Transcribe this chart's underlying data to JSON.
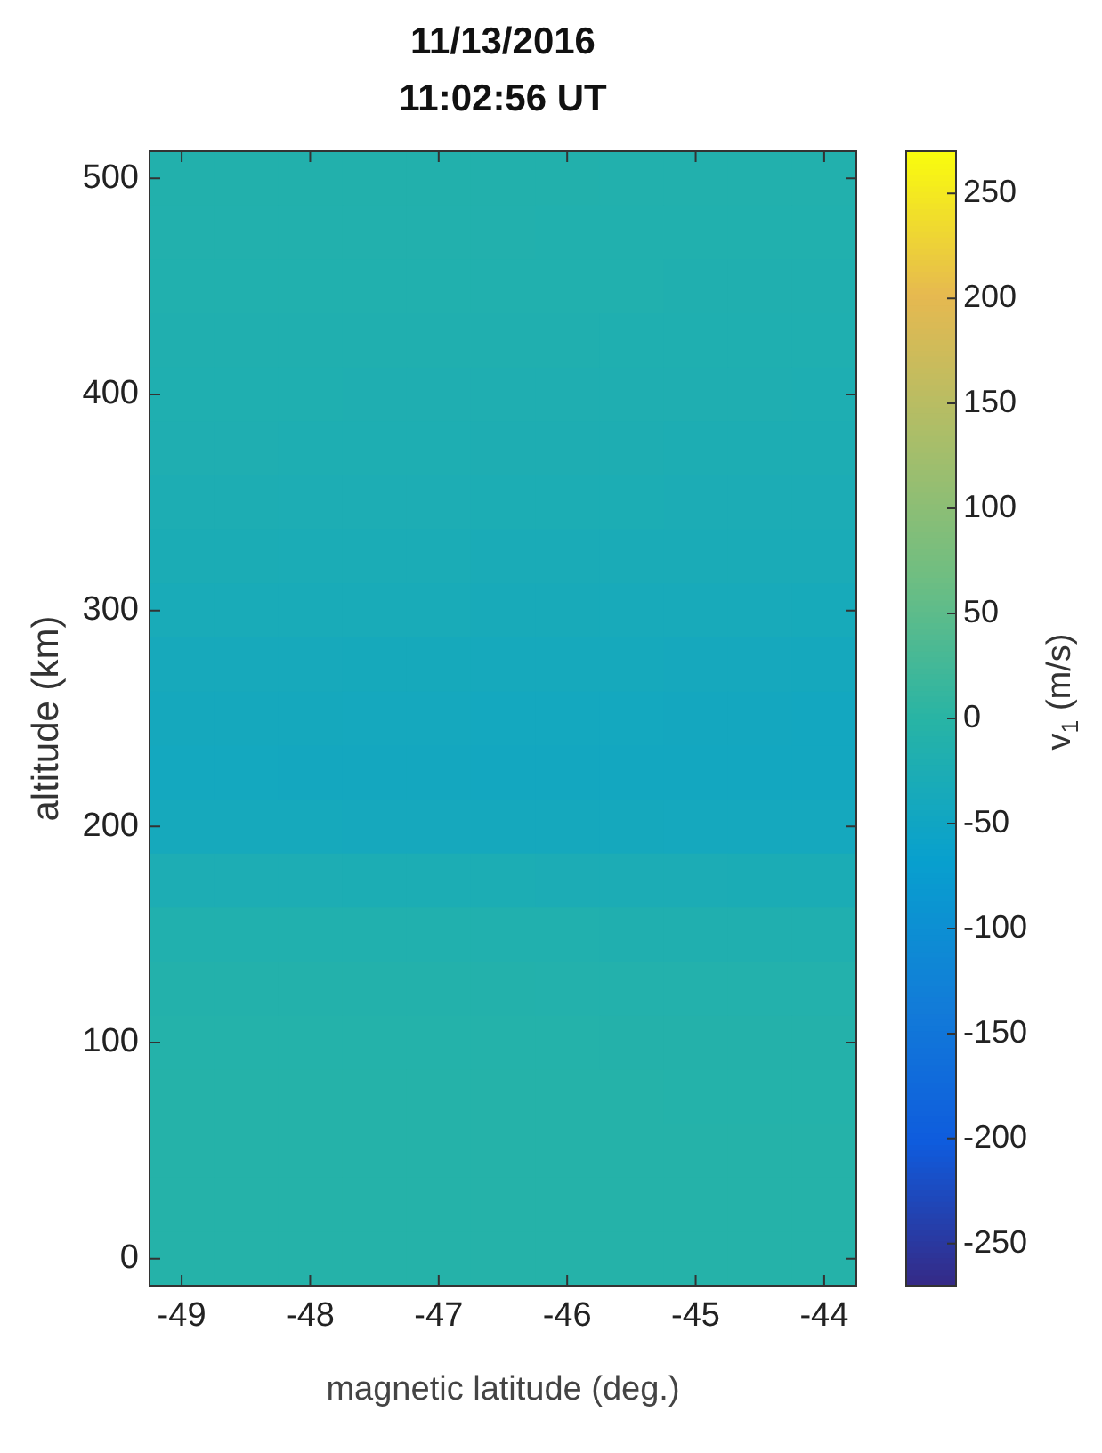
{
  "chart_data": {
    "type": "heatmap",
    "title": "11/13/2016\n11:02:56 UT",
    "xlabel": "magnetic latitude (deg.)",
    "ylabel": "altitude (km)",
    "clabel": "v$_{1}$ (m/s)",
    "categories": [
      "-49",
      null,
      "-48",
      null,
      "-47",
      null,
      "-46",
      null,
      "-45",
      null,
      "-44"
    ],
    "y_categories": [
      "500",
      null,
      null,
      null,
      "400",
      null,
      null,
      null,
      "300",
      null,
      null,
      null,
      "200",
      null,
      null,
      null,
      "100",
      null,
      null,
      null,
      "0"
    ],
    "cells": [
      [
        -12,
        -12,
        -12,
        -12,
        -12,
        -12,
        -12,
        -13,
        -13,
        -13,
        -13
      ],
      [
        -13,
        -13,
        -13,
        -13,
        -13,
        -13,
        -14,
        -14,
        -14,
        -14,
        -14
      ],
      [
        -14,
        -14,
        -14,
        -15,
        -15,
        -15,
        -15,
        -15,
        -16,
        -16,
        -16
      ],
      [
        -16,
        -16,
        -16,
        -17,
        -17,
        -17,
        -17,
        -18,
        -18,
        -18,
        -18
      ],
      [
        -18,
        -18,
        -18,
        -19,
        -19,
        -19,
        -20,
        -20,
        -20,
        -20,
        -21
      ],
      [
        -20,
        -20,
        -21,
        -21,
        -21,
        -22,
        -22,
        -22,
        -23,
        -23,
        -23
      ],
      [
        -23,
        -23,
        -24,
        -24,
        -24,
        -25,
        -25,
        -25,
        -26,
        -26,
        -26
      ],
      [
        -27,
        -27,
        -28,
        -28,
        -28,
        -29,
        -29,
        -29,
        -30,
        -30,
        -30
      ],
      [
        -31,
        -31,
        -32,
        -32,
        -32,
        -33,
        -33,
        -34,
        -34,
        -34,
        -35
      ],
      [
        -36,
        -36,
        -36,
        -37,
        -37,
        -38,
        -38,
        -38,
        -39,
        -39,
        -40
      ],
      [
        -40,
        -40,
        -40,
        -41,
        -41,
        -42,
        -42,
        -42,
        -43,
        -43,
        -44
      ],
      [
        -42,
        -42,
        -43,
        -43,
        -43,
        -44,
        -44,
        -44,
        -45,
        -45,
        -45
      ],
      [
        -38,
        -38,
        -38,
        -39,
        -39,
        -40,
        -40,
        -40,
        -41,
        -41,
        -41
      ],
      [
        -24,
        -24,
        -24,
        -25,
        -25,
        -25,
        -26,
        -26,
        -26,
        -27,
        -27
      ],
      [
        -14,
        -14,
        -14,
        -15,
        -15,
        -15,
        -15,
        -16,
        -16,
        -16,
        -16
      ],
      [
        -10,
        -10,
        -10,
        -10,
        -10,
        -10,
        -11,
        -11,
        -11,
        -11,
        -11
      ],
      [
        -8,
        -8,
        -8,
        -8,
        -8,
        -8,
        -8,
        -9,
        -9,
        -9,
        -9
      ],
      [
        -7,
        -7,
        -7,
        -7,
        -7,
        -7,
        -7,
        -7,
        -8,
        -8,
        -8
      ],
      [
        -6,
        -6,
        -6,
        -6,
        -6,
        -6,
        -6,
        -7,
        -7,
        -7,
        -7
      ],
      [
        -6,
        -6,
        -6,
        -6,
        -6,
        -6,
        -6,
        -6,
        -6,
        -7,
        -7
      ],
      [
        -6,
        -6,
        -6,
        -6,
        -6,
        -6,
        -6,
        -6,
        -6,
        -6,
        -6
      ]
    ],
    "clim": [
      -270,
      270
    ],
    "cticks": [
      -250,
      -200,
      -150,
      -100,
      -50,
      0,
      50,
      100,
      150,
      200,
      250
    ]
  }
}
